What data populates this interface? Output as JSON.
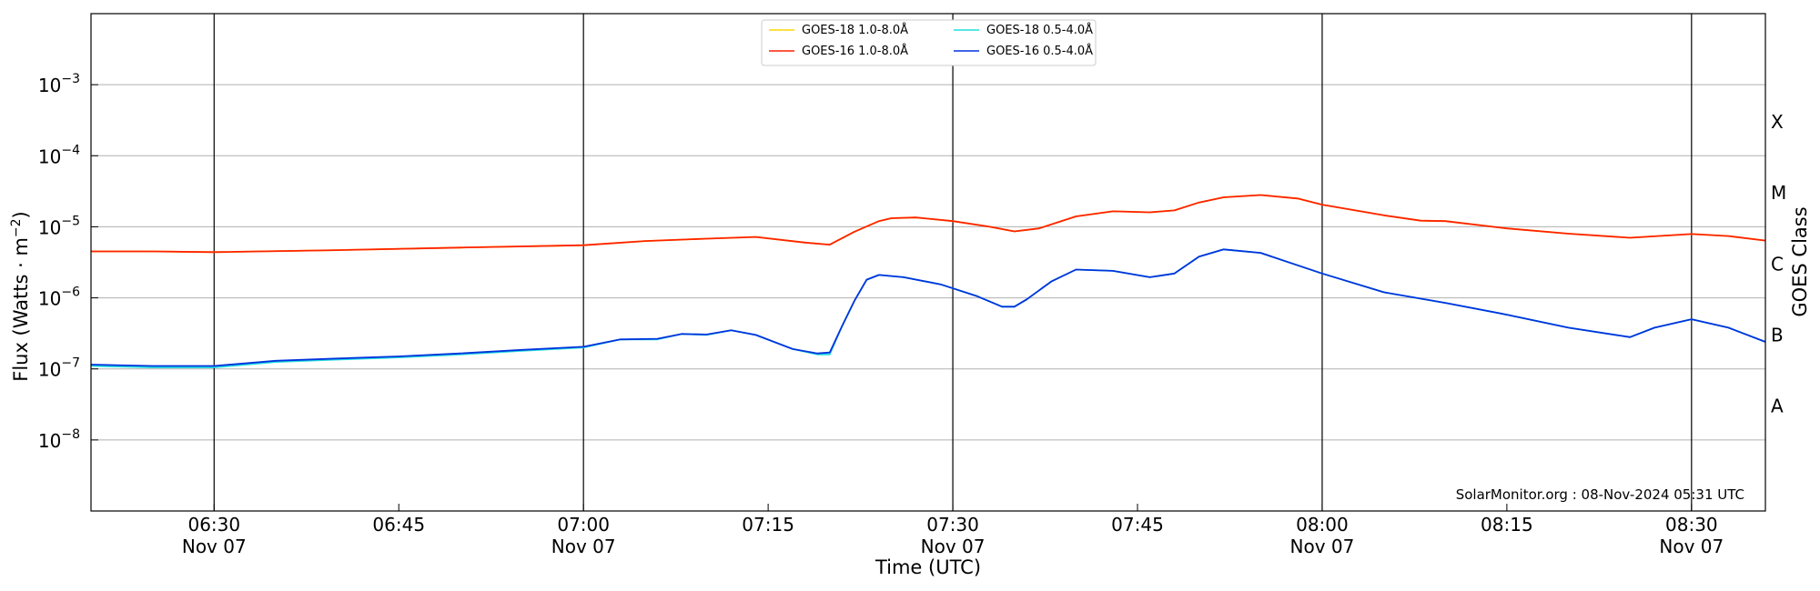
{
  "chart_data": {
    "type": "line",
    "title": "",
    "xlabel": "Time (UTC)",
    "ylabel": "Flux (Watts · m",
    "ylabel_exp": "−2",
    "ylabel_close": ")",
    "y2label": "GOES Class",
    "yscale": "log",
    "ylim": [
      1e-09,
      0.01
    ],
    "xlim": [
      "06:20",
      "08:36"
    ],
    "grid": "horizontal",
    "legend_placement": "top-center",
    "y_ticks": [
      {
        "value": 1e-08,
        "base": "10",
        "exp": "−8"
      },
      {
        "value": 1e-07,
        "base": "10",
        "exp": "−7"
      },
      {
        "value": 1e-06,
        "base": "10",
        "exp": "−6"
      },
      {
        "value": 1e-05,
        "base": "10",
        "exp": "−5"
      },
      {
        "value": 0.0001,
        "base": "10",
        "exp": "−4"
      },
      {
        "value": 0.001,
        "base": "10",
        "exp": "−3"
      }
    ],
    "x_ticks": [
      {
        "time": "06:30",
        "line1": "06:30",
        "line2": "Nov 07",
        "vline": true
      },
      {
        "time": "06:45",
        "line1": "06:45",
        "line2": "",
        "vline": false
      },
      {
        "time": "07:00",
        "line1": "07:00",
        "line2": "Nov 07",
        "vline": true
      },
      {
        "time": "07:15",
        "line1": "07:15",
        "line2": "",
        "vline": false
      },
      {
        "time": "07:30",
        "line1": "07:30",
        "line2": "Nov 07",
        "vline": true
      },
      {
        "time": "07:45",
        "line1": "07:45",
        "line2": "",
        "vline": false
      },
      {
        "time": "08:00",
        "line1": "08:00",
        "line2": "Nov 07",
        "vline": true
      },
      {
        "time": "08:15",
        "line1": "08:15",
        "line2": "",
        "vline": false
      },
      {
        "time": "08:30",
        "line1": "08:30",
        "line2": "Nov 07",
        "vline": true
      }
    ],
    "goes_classes": [
      {
        "label": "A",
        "value": 3e-08
      },
      {
        "label": "B",
        "value": 3e-07
      },
      {
        "label": "C",
        "value": 3e-06
      },
      {
        "label": "M",
        "value": 3e-05
      },
      {
        "label": "X",
        "value": 0.0003
      }
    ],
    "series": [
      {
        "name": "GOES-18 1.0-8.0Å",
        "color": "#ffd700",
        "x": [
          "06:20",
          "06:25",
          "06:30",
          "06:40",
          "06:50",
          "07:00",
          "07:05",
          "07:10",
          "07:14",
          "07:18",
          "07:20",
          "07:22",
          "07:24",
          "07:25",
          "07:27",
          "07:30",
          "07:33",
          "07:35",
          "07:37",
          "07:40",
          "07:43",
          "07:46",
          "07:48",
          "07:50",
          "07:52",
          "07:55",
          "07:58",
          "08:00",
          "08:05",
          "08:08",
          "08:10",
          "08:15",
          "08:20",
          "08:25",
          "08:30",
          "08:33",
          "08:36"
        ],
        "y": [
          4.5e-06,
          4.5e-06,
          4.4e-06,
          4.7e-06,
          5.1e-06,
          5.5e-06,
          6.3e-06,
          6.8e-06,
          7.2e-06,
          6e-06,
          5.6e-06,
          8.5e-06,
          1.2e-05,
          1.32e-05,
          1.35e-05,
          1.2e-05,
          1e-05,
          8.6e-06,
          9.5e-06,
          1.4e-05,
          1.65e-05,
          1.6e-05,
          1.7e-05,
          2.2e-05,
          2.6e-05,
          2.8e-05,
          2.5e-05,
          2.05e-05,
          1.45e-05,
          1.22e-05,
          1.2e-05,
          9.5e-06,
          8e-06,
          7e-06,
          7.9e-06,
          7.4e-06,
          6.4e-06
        ]
      },
      {
        "name": "GOES-16 1.0-8.0Å",
        "color": "#ff2200",
        "x": [
          "06:20",
          "06:25",
          "06:30",
          "06:40",
          "06:50",
          "07:00",
          "07:05",
          "07:10",
          "07:14",
          "07:18",
          "07:20",
          "07:22",
          "07:24",
          "07:25",
          "07:27",
          "07:30",
          "07:33",
          "07:35",
          "07:37",
          "07:40",
          "07:43",
          "07:46",
          "07:48",
          "07:50",
          "07:52",
          "07:55",
          "07:58",
          "08:00",
          "08:05",
          "08:08",
          "08:10",
          "08:15",
          "08:20",
          "08:25",
          "08:30",
          "08:33",
          "08:36"
        ],
        "y": [
          4.5e-06,
          4.5e-06,
          4.4e-06,
          4.7e-06,
          5.1e-06,
          5.5e-06,
          6.3e-06,
          6.8e-06,
          7.2e-06,
          6e-06,
          5.6e-06,
          8.5e-06,
          1.2e-05,
          1.32e-05,
          1.35e-05,
          1.2e-05,
          1e-05,
          8.6e-06,
          9.5e-06,
          1.4e-05,
          1.65e-05,
          1.6e-05,
          1.7e-05,
          2.2e-05,
          2.6e-05,
          2.8e-05,
          2.5e-05,
          2.05e-05,
          1.45e-05,
          1.22e-05,
          1.2e-05,
          9.5e-06,
          8e-06,
          7e-06,
          7.9e-06,
          7.4e-06,
          6.4e-06
        ]
      },
      {
        "name": "GOES-18 0.5-4.0Å",
        "color": "#22dddd",
        "x": [
          "06:20",
          "06:25",
          "06:30",
          "06:35",
          "06:40",
          "06:45",
          "06:50",
          "06:55",
          "07:00",
          "07:03",
          "07:06",
          "07:08",
          "07:10",
          "07:12",
          "07:14",
          "07:17",
          "07:19",
          "07:20",
          "07:21",
          "07:22",
          "07:23",
          "07:24",
          "07:26",
          "07:29",
          "07:32",
          "07:34",
          "07:35",
          "07:36",
          "07:38",
          "07:40",
          "07:43",
          "07:46",
          "07:48",
          "07:50",
          "07:52",
          "07:55",
          "08:00",
          "08:05",
          "08:10",
          "08:15",
          "08:20",
          "08:25",
          "08:27",
          "08:30",
          "08:33",
          "08:36"
        ],
        "y": [
          1.1e-07,
          1.05e-07,
          1.05e-07,
          1.25e-07,
          1.35e-07,
          1.45e-07,
          1.6e-07,
          1.8e-07,
          2e-07,
          2.6e-07,
          2.6e-07,
          3.1e-07,
          3e-07,
          3.5e-07,
          3e-07,
          1.9e-07,
          1.6e-07,
          1.6e-07,
          4e-07,
          9e-07,
          1.8e-06,
          2.1e-06,
          1.95e-06,
          1.55e-06,
          1.05e-06,
          7.5e-07,
          7.5e-07,
          9.5e-07,
          1.7e-06,
          2.5e-06,
          2.4e-06,
          1.95e-06,
          2.2e-06,
          3.8e-06,
          4.8e-06,
          4.3e-06,
          2.2e-06,
          1.2e-06,
          8.5e-07,
          5.8e-07,
          3.8e-07,
          2.8e-07,
          3.8e-07,
          5e-07,
          3.8e-07,
          2.4e-07
        ]
      },
      {
        "name": "GOES-16 0.5-4.0Å",
        "color": "#0033dd",
        "x": [
          "06:20",
          "06:25",
          "06:30",
          "06:35",
          "06:40",
          "06:45",
          "06:50",
          "06:55",
          "07:00",
          "07:03",
          "07:06",
          "07:08",
          "07:10",
          "07:12",
          "07:14",
          "07:17",
          "07:19",
          "07:20",
          "07:21",
          "07:22",
          "07:23",
          "07:24",
          "07:26",
          "07:29",
          "07:32",
          "07:34",
          "07:35",
          "07:36",
          "07:38",
          "07:40",
          "07:43",
          "07:46",
          "07:48",
          "07:50",
          "07:52",
          "07:55",
          "08:00",
          "08:05",
          "08:10",
          "08:15",
          "08:20",
          "08:25",
          "08:27",
          "08:30",
          "08:33",
          "08:36"
        ],
        "y": [
          1.15e-07,
          1.1e-07,
          1.1e-07,
          1.3e-07,
          1.4e-07,
          1.5e-07,
          1.65e-07,
          1.85e-07,
          2.05e-07,
          2.6e-07,
          2.65e-07,
          3.1e-07,
          3.05e-07,
          3.5e-07,
          3e-07,
          1.9e-07,
          1.65e-07,
          1.7e-07,
          4e-07,
          9e-07,
          1.8e-06,
          2.1e-06,
          1.95e-06,
          1.55e-06,
          1.05e-06,
          7.5e-07,
          7.5e-07,
          9.5e-07,
          1.7e-06,
          2.5e-06,
          2.4e-06,
          1.95e-06,
          2.2e-06,
          3.8e-06,
          4.8e-06,
          4.3e-06,
          2.2e-06,
          1.2e-06,
          8.5e-07,
          5.8e-07,
          3.8e-07,
          2.8e-07,
          3.8e-07,
          5e-07,
          3.8e-07,
          2.4e-07
        ]
      }
    ],
    "credit": "SolarMonitor.org : 08-Nov-2024 05:31 UTC"
  }
}
